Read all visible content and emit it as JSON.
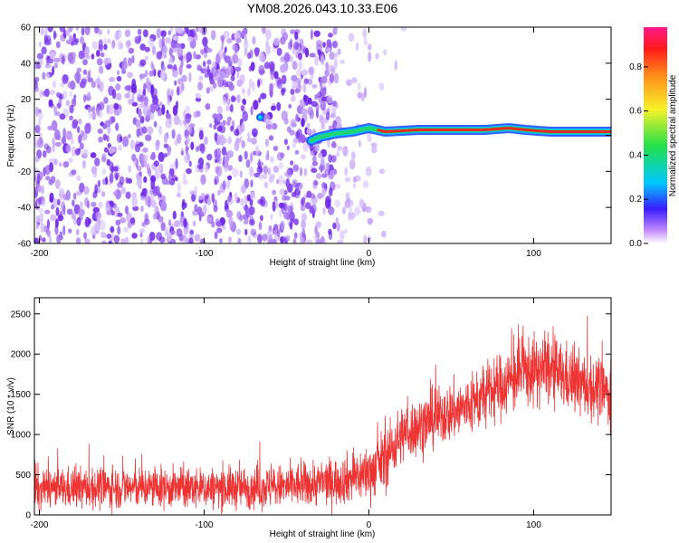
{
  "title": "YM08.2026.043.10.33.E06",
  "colors": {
    "noise": "#7b2cf0",
    "trace_low": "#1f4bff",
    "trace_mid": "#22d66b",
    "trace_high": "#ee2222",
    "snr_line": "#ee3333"
  },
  "chart_data": [
    {
      "type": "heatmap",
      "name": "spectrogram",
      "xlabel": "Height of straight line (km)",
      "ylabel": "Frequency (Hz)",
      "xlim": [
        -203,
        147
      ],
      "ylim": [
        -60,
        60
      ],
      "xticks": [
        -200,
        -100,
        0,
        100
      ],
      "yticks": [
        -60,
        -40,
        -20,
        0,
        20,
        40,
        60
      ],
      "colorbar": {
        "label": "Normalized spectral amplitude",
        "range": [
          0,
          0.98
        ],
        "ticks": [
          "0.0",
          "0.2",
          "0.4",
          "0.6",
          "0.8"
        ]
      },
      "trace": {
        "x": [
          -35,
          -30,
          -20,
          -10,
          0,
          10,
          30,
          50,
          70,
          85,
          95,
          110,
          120,
          147
        ],
        "y": [
          -3,
          -1,
          1,
          2,
          4,
          2,
          3,
          3,
          3,
          4,
          3,
          2,
          2,
          2
        ]
      }
    },
    {
      "type": "line",
      "name": "snr",
      "xlabel": "Height of straight line (km)",
      "ylabel": "SNR (10 * v/v)",
      "xlim": [
        -203,
        147
      ],
      "ylim": [
        0,
        2700
      ],
      "xticks": [
        -200,
        -100,
        0,
        100
      ],
      "yticks": [
        0,
        500,
        1000,
        1500,
        2000,
        2500
      ],
      "envelope": {
        "x": [
          -203,
          -150,
          -100,
          -50,
          -20,
          0,
          10,
          20,
          40,
          60,
          80,
          95,
          110,
          125,
          147
        ],
        "mean": [
          320,
          340,
          330,
          350,
          420,
          520,
          700,
          1000,
          1200,
          1350,
          1600,
          1780,
          1800,
          1650,
          1500
        ],
        "spread": [
          280,
          280,
          280,
          300,
          320,
          380,
          420,
          400,
          400,
          420,
          450,
          480,
          480,
          450,
          430
        ]
      }
    }
  ]
}
